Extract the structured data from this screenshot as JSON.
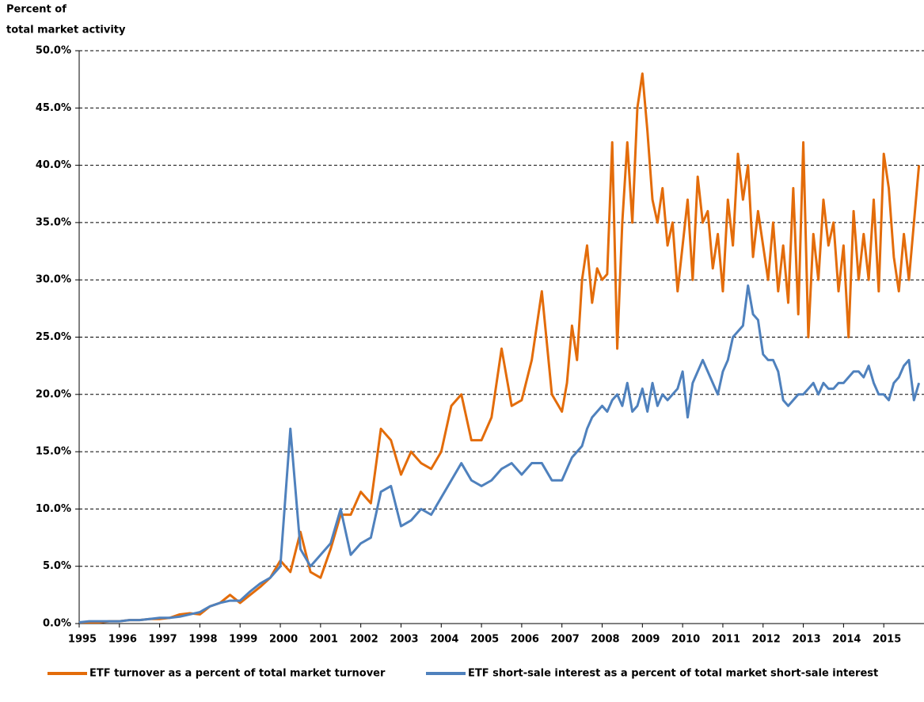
{
  "chart_data": {
    "type": "line",
    "ylabel": [
      "Percent of",
      "total market activity"
    ],
    "xlim": [
      1995,
      2016
    ],
    "xticks": [
      1995,
      1996,
      1997,
      1998,
      1999,
      2000,
      2001,
      2002,
      2003,
      2004,
      2005,
      2006,
      2007,
      2008,
      2009,
      2010,
      2011,
      2012,
      2013,
      2014,
      2015
    ],
    "ylim": [
      0,
      50
    ],
    "yticks": [
      {
        "value": 0,
        "label": "0.0%"
      },
      {
        "value": 5,
        "label": "5.0%"
      },
      {
        "value": 10,
        "label": "10.0%"
      },
      {
        "value": 15,
        "label": "15.0%"
      },
      {
        "value": 20,
        "label": "20.0%"
      },
      {
        "value": 25,
        "label": "25.0%"
      },
      {
        "value": 30,
        "label": "30.0%"
      },
      {
        "value": 35,
        "label": "35.0%"
      },
      {
        "value": 40,
        "label": "40.0%"
      },
      {
        "value": 45,
        "label": "45.0%"
      },
      {
        "value": 50,
        "label": "50.0%"
      }
    ],
    "grid": true,
    "legend": "bottom",
    "x": [
      1995,
      1995.25,
      1995.5,
      1995.75,
      1996,
      1996.25,
      1996.5,
      1996.75,
      1997,
      1997.25,
      1997.5,
      1997.75,
      1998,
      1998.25,
      1998.5,
      1998.75,
      1999,
      1999.25,
      1999.5,
      1999.75,
      2000,
      2000.25,
      2000.5,
      2000.75,
      2001,
      2001.25,
      2001.5,
      2001.75,
      2002,
      2002.25,
      2002.5,
      2002.75,
      2003,
      2003.25,
      2003.5,
      2003.75,
      2004,
      2004.25,
      2004.5,
      2004.75,
      2005,
      2005.25,
      2005.5,
      2005.75,
      2006,
      2006.25,
      2006.5,
      2006.75,
      2007,
      2007.125,
      2007.25,
      2007.375,
      2007.5,
      2007.625,
      2007.75,
      2007.875,
      2008,
      2008.125,
      2008.25,
      2008.375,
      2008.5,
      2008.625,
      2008.75,
      2008.875,
      2009,
      2009.125,
      2009.25,
      2009.375,
      2009.5,
      2009.625,
      2009.75,
      2009.875,
      2010,
      2010.125,
      2010.25,
      2010.375,
      2010.5,
      2010.625,
      2010.75,
      2010.875,
      2011,
      2011.125,
      2011.25,
      2011.375,
      2011.5,
      2011.625,
      2011.75,
      2011.875,
      2012,
      2012.125,
      2012.25,
      2012.375,
      2012.5,
      2012.625,
      2012.75,
      2012.875,
      2013,
      2013.125,
      2013.25,
      2013.375,
      2013.5,
      2013.625,
      2013.75,
      2013.875,
      2014,
      2014.125,
      2014.25,
      2014.375,
      2014.5,
      2014.625,
      2014.75,
      2014.875,
      2015,
      2015.125,
      2015.25,
      2015.375,
      2015.5,
      2015.625,
      2015.75,
      2015.875
    ],
    "series": [
      {
        "name": "ETF turnover as a percent of total market turnover",
        "color": "#e36c0a",
        "values": [
          0.1,
          0.1,
          0.1,
          0.2,
          0.2,
          0.3,
          0.3,
          0.4,
          0.4,
          0.5,
          0.8,
          0.9,
          0.8,
          1.5,
          1.8,
          2.5,
          1.8,
          2.5,
          3.2,
          4.0,
          5.5,
          4.5,
          8.0,
          4.5,
          4.0,
          6.5,
          9.5,
          9.5,
          11.5,
          10.5,
          17.0,
          16.0,
          13.0,
          15.0,
          14.0,
          13.5,
          15.0,
          19.0,
          20.0,
          16.0,
          16.0,
          18.0,
          24.0,
          19.0,
          19.5,
          23.0,
          29.0,
          20.0,
          18.5,
          21,
          26,
          23,
          30,
          33,
          28,
          31,
          30,
          30.5,
          42,
          24,
          35,
          42,
          35,
          45,
          48,
          43,
          37,
          35,
          38,
          33,
          35,
          29,
          33,
          37,
          30,
          39,
          35,
          36,
          31,
          34,
          29,
          37,
          33,
          41,
          37,
          40,
          32,
          36,
          33,
          30,
          35,
          29,
          33,
          28,
          38,
          27,
          42,
          25,
          34,
          30,
          37,
          33,
          35,
          29,
          33,
          25,
          36,
          30,
          34,
          30,
          37,
          29,
          41,
          38,
          32,
          29,
          34,
          30,
          35,
          40
        ]
      },
      {
        "name": "ETF short-sale interest as a percent of total market short-sale interest",
        "color": "#4f81bd",
        "values": [
          0.1,
          0.2,
          0.2,
          0.2,
          0.2,
          0.3,
          0.3,
          0.4,
          0.5,
          0.5,
          0.6,
          0.8,
          1.0,
          1.5,
          1.8,
          2.0,
          2.0,
          2.8,
          3.5,
          4.0,
          5.0,
          17.0,
          6.5,
          5.0,
          6.0,
          7.0,
          10.0,
          6.0,
          7.0,
          7.5,
          11.5,
          12.0,
          8.5,
          9.0,
          10.0,
          9.5,
          11.0,
          12.5,
          14.0,
          12.5,
          12.0,
          12.5,
          13.5,
          14.0,
          13.0,
          14.0,
          14.0,
          12.5,
          12.5,
          13.5,
          14.5,
          15,
          15.5,
          17,
          18,
          18.5,
          19,
          18.5,
          19.5,
          20,
          19,
          21,
          18.5,
          19,
          20.5,
          18.5,
          21,
          19,
          20,
          19.5,
          20,
          20.5,
          22,
          18,
          21,
          22,
          23,
          22,
          21,
          20,
          22,
          23,
          25,
          25.5,
          26,
          29.5,
          27,
          26.5,
          23.5,
          23,
          23,
          22,
          19.5,
          19,
          19.5,
          20,
          20,
          20.5,
          21,
          20,
          21,
          20.5,
          20.5,
          21,
          21,
          21.5,
          22,
          22,
          21.5,
          22.5,
          21,
          20,
          20,
          19.5,
          21,
          21.5,
          22.5,
          23,
          19.5,
          21
        ]
      }
    ]
  }
}
